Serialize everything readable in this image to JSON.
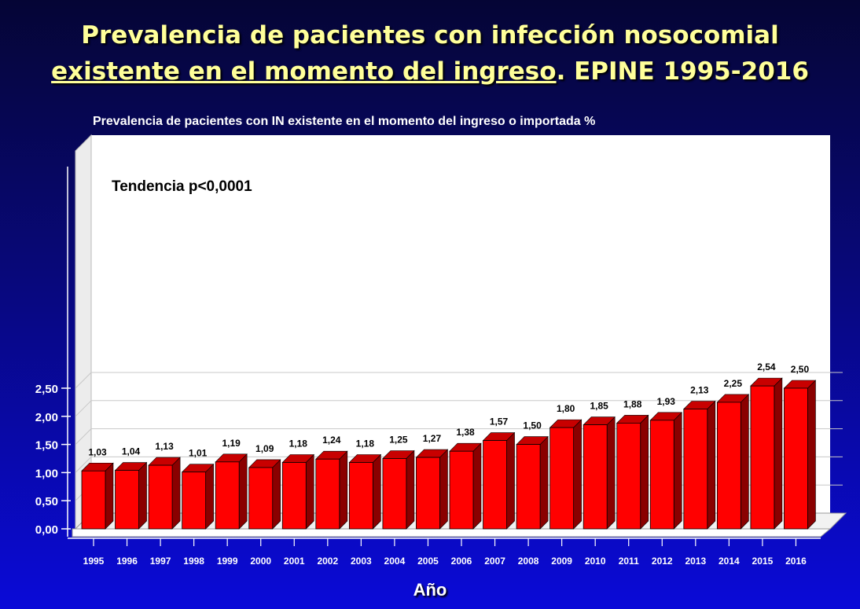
{
  "title": {
    "line1": "Prevalencia de pacientes con infección nosocomial",
    "line2_underlined": "existente en el momento del ingreso",
    "line2_rest": ". EPINE 1995-2016"
  },
  "colors": {
    "bar_front": "#ff0000",
    "bar_side": "#8a0000",
    "title": "#ffff9a",
    "plot_bg": "#ffffff"
  },
  "chart_data": {
    "type": "bar",
    "title": "Prevalencia de pacientes con IN existente en el momento del ingreso o importada %",
    "xlabel": "Año",
    "ylabel": "",
    "annotation": "Tendencia p<0,0001",
    "categories": [
      "1995",
      "1996",
      "1997",
      "1998",
      "1999",
      "2000",
      "2001",
      "2002",
      "2003",
      "2004",
      "2005",
      "2006",
      "2007",
      "2008",
      "2009",
      "2010",
      "2011",
      "2012",
      "2013",
      "2014",
      "2015",
      "2016"
    ],
    "values": [
      1.03,
      1.04,
      1.13,
      1.01,
      1.19,
      1.09,
      1.18,
      1.24,
      1.18,
      1.25,
      1.27,
      1.38,
      1.57,
      1.5,
      1.8,
      1.85,
      1.88,
      1.93,
      2.13,
      2.25,
      2.54,
      2.5
    ],
    "value_labels": [
      "1,03",
      "1,04",
      "1,13",
      "1,01",
      "1,19",
      "1,09",
      "1,18",
      "1,24",
      "1,18",
      "1,25",
      "1,27",
      "1,38",
      "1,57",
      "1,50",
      "1,80",
      "1,85",
      "1,88",
      "1,93",
      "2,13",
      "2,25",
      "2,54",
      "2,50"
    ],
    "ylim": [
      0,
      2.5
    ],
    "yticks": [
      0,
      0.5,
      1.0,
      1.5,
      2.0,
      2.5
    ],
    "ytick_labels": [
      "0,00",
      "0,50",
      "1,00",
      "1,50",
      "2,00",
      "2,50"
    ],
    "grid": true,
    "style": "3d"
  }
}
